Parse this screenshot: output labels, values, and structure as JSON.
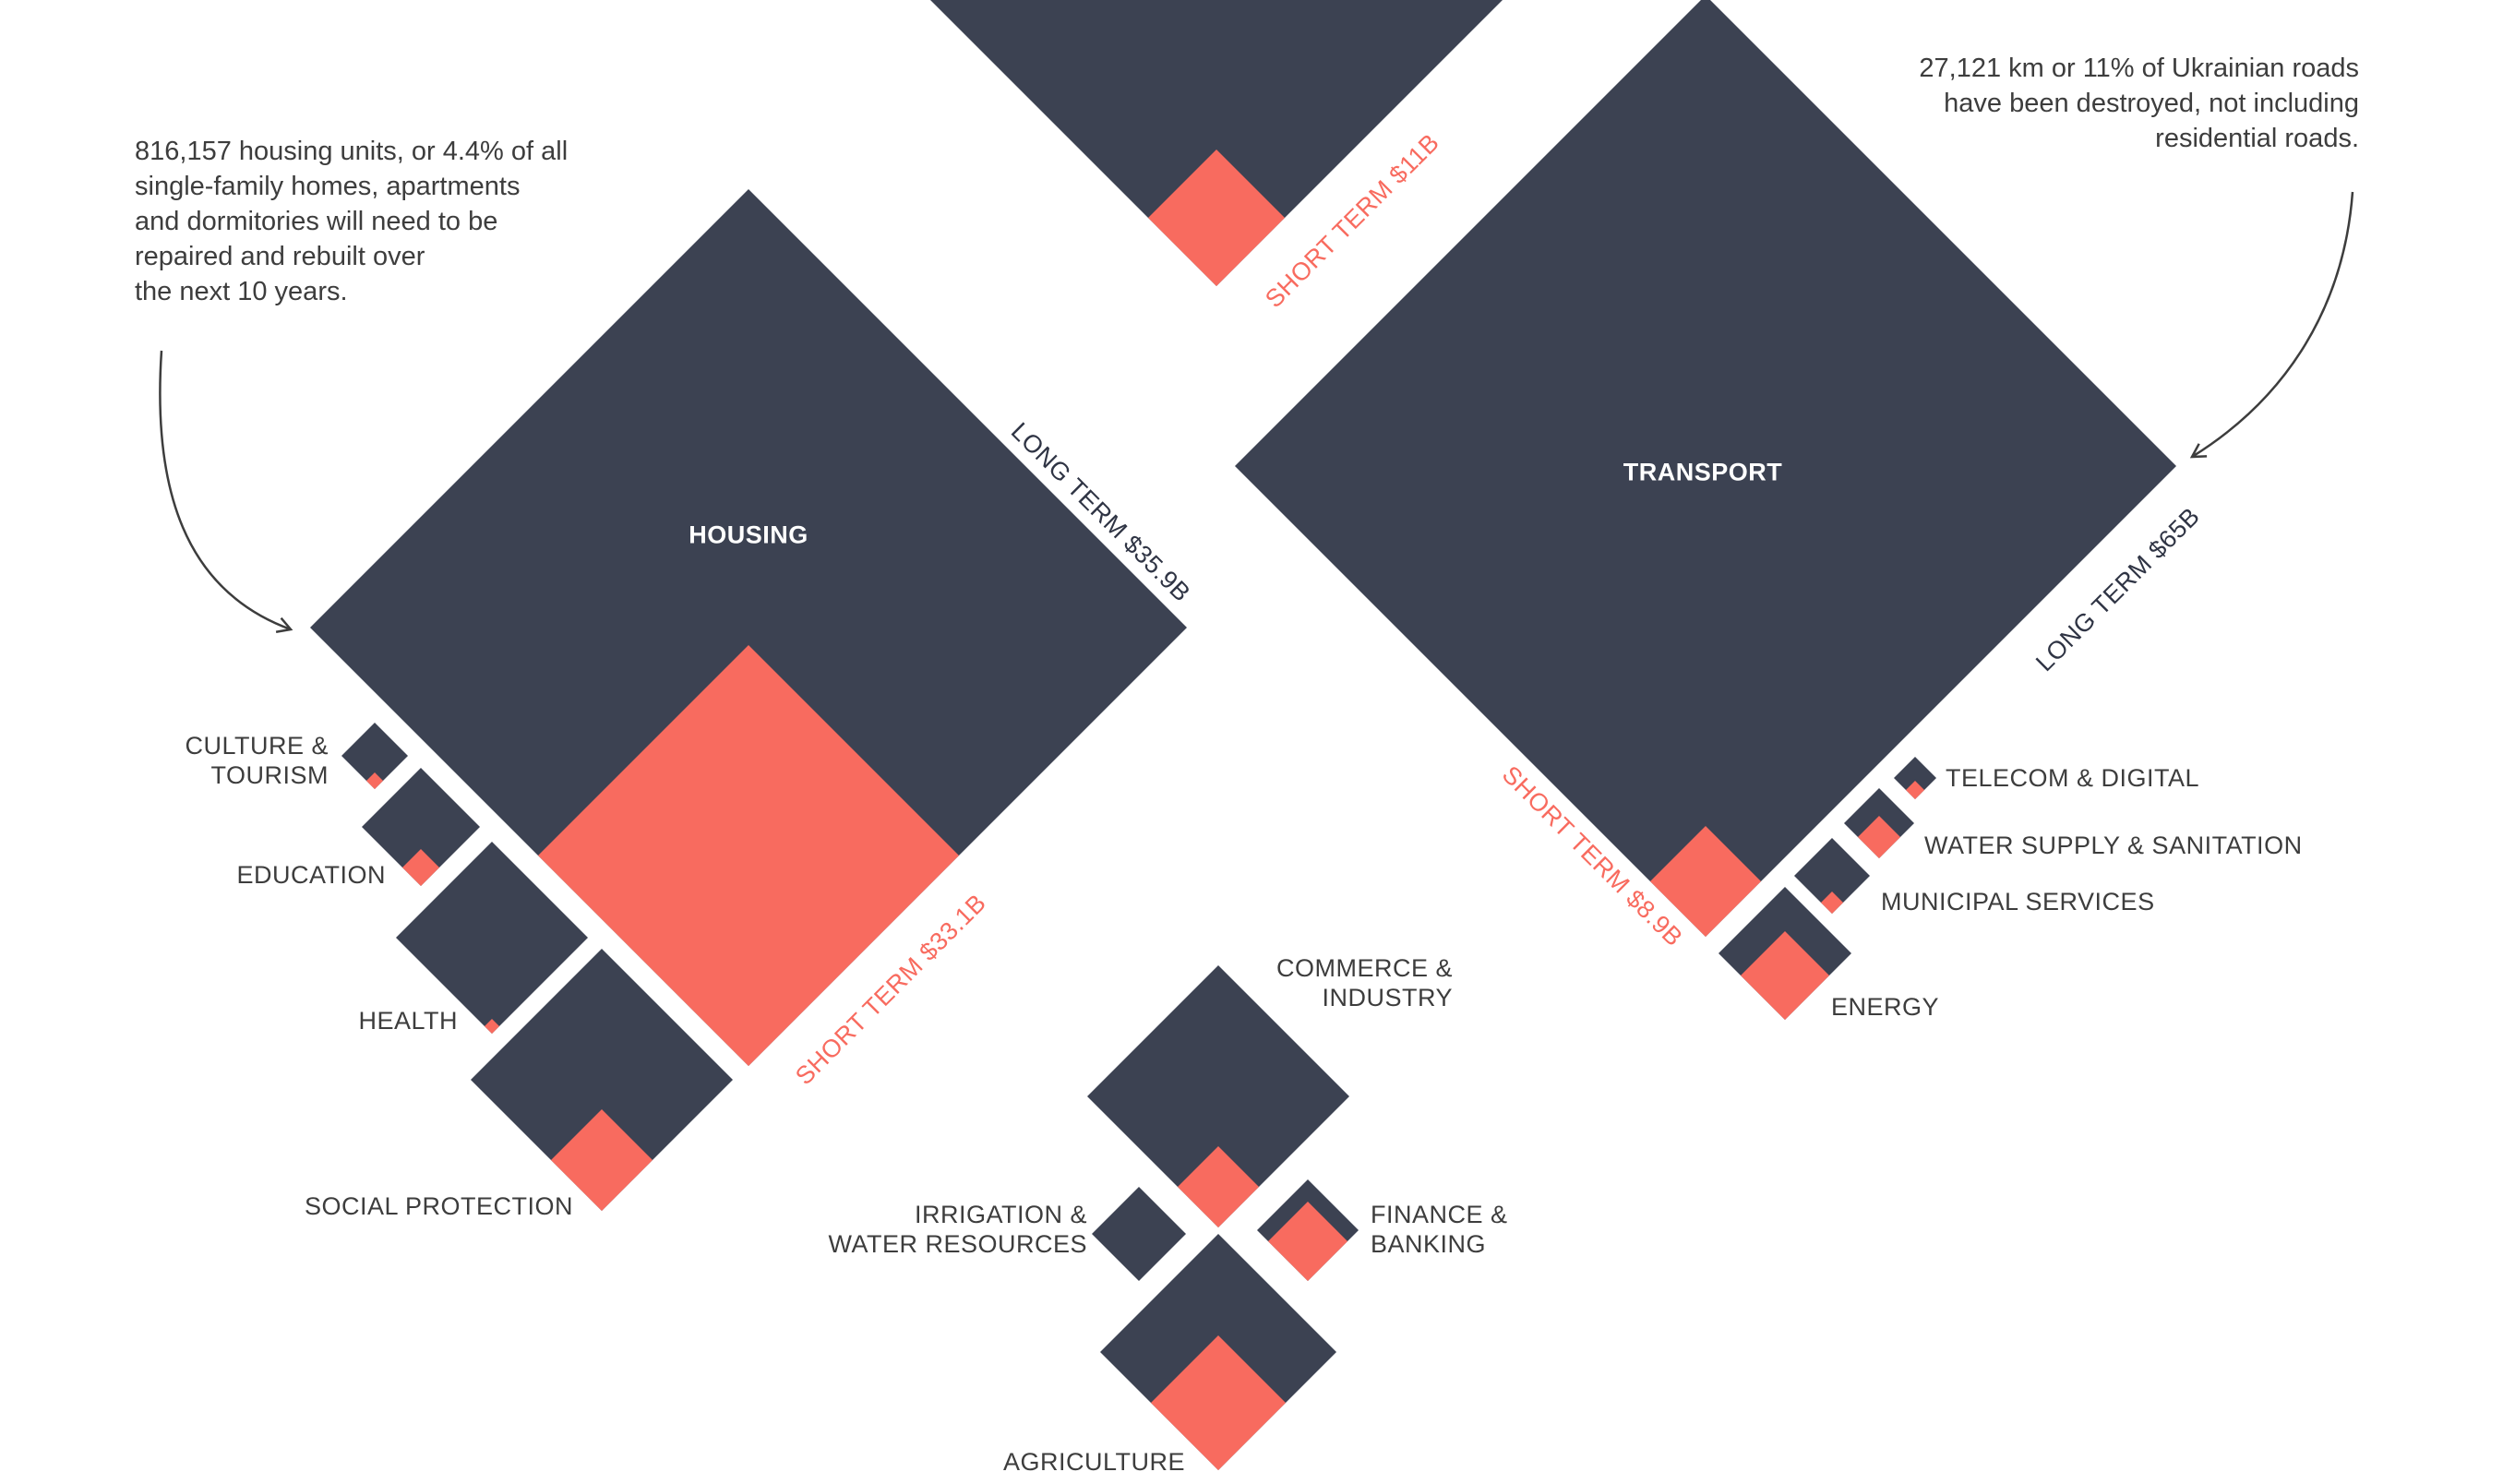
{
  "colors": {
    "long_term": "#3c4252",
    "short_term": "#f86b5f",
    "text": "#3d3d3d",
    "title_text": "#ffffff",
    "arrow": "#3d3d3d"
  },
  "notes": {
    "housing": "816,157 housing units, or 4.4% of all\nsingle-family homes, apartments\nand dormitories will need to be\nrepaired and rebuilt over\nthe next 10 years.",
    "transport": "27,121 km or 11% of Ukrainian roads\nhave been destroyed, not including\nresidential roads."
  },
  "titles": {
    "housing": "HOUSING",
    "transport": "TRANSPORT"
  },
  "rotated_labels": {
    "top_short": "SHORT TERM $11B",
    "housing_long": "LONG TERM $35.9B",
    "housing_short": "SHORT TERM $33.1B",
    "transport_long": "LONG TERM $65B",
    "transport_short": "SHORT TERM $8.9B"
  },
  "sector_labels": {
    "culture": "CULTURE &\nTOURISM",
    "education": "EDUCATION",
    "health": "HEALTH",
    "social": "SOCIAL PROTECTION",
    "telecom": "TELECOM & DIGITAL",
    "water": "WATER SUPPLY & SANITATION",
    "municipal": "MUNICIPAL SERVICES",
    "energy": "ENERGY",
    "commerce": "COMMERCE &\nINDUSTRY",
    "irrigation": "IRRIGATION &\nWATER RESOURCES",
    "finance": "FINANCE &\nBANKING",
    "agriculture": "AGRICULTURE"
  },
  "chart_data": {
    "type": "nested-diamonds",
    "series": [
      {
        "name": "LONG TERM"
      },
      {
        "name": "SHORT TERM"
      }
    ],
    "sectors": [
      {
        "name": "",
        "long_term_billion_usd": null,
        "short_term_billion_usd": 11
      },
      {
        "name": "HOUSING",
        "long_term_billion_usd": 35.9,
        "short_term_billion_usd": 33.1
      },
      {
        "name": "TRANSPORT",
        "long_term_billion_usd": 65,
        "short_term_billion_usd": 8.9
      },
      {
        "name": "CULTURE & TOURISM",
        "long_term_billion_usd": null,
        "short_term_billion_usd": null
      },
      {
        "name": "EDUCATION",
        "long_term_billion_usd": null,
        "short_term_billion_usd": null
      },
      {
        "name": "HEALTH",
        "long_term_billion_usd": null,
        "short_term_billion_usd": null
      },
      {
        "name": "SOCIAL PROTECTION",
        "long_term_billion_usd": null,
        "short_term_billion_usd": null
      },
      {
        "name": "TELECOM & DIGITAL",
        "long_term_billion_usd": null,
        "short_term_billion_usd": null
      },
      {
        "name": "WATER SUPPLY & SANITATION",
        "long_term_billion_usd": null,
        "short_term_billion_usd": null
      },
      {
        "name": "MUNICIPAL SERVICES",
        "long_term_billion_usd": null,
        "short_term_billion_usd": null
      },
      {
        "name": "ENERGY",
        "long_term_billion_usd": null,
        "short_term_billion_usd": null
      },
      {
        "name": "COMMERCE & INDUSTRY",
        "long_term_billion_usd": null,
        "short_term_billion_usd": null
      },
      {
        "name": "IRRIGATION & WATER RESOURCES",
        "long_term_billion_usd": null,
        "short_term_billion_usd": null
      },
      {
        "name": "FINANCE & BANKING",
        "long_term_billion_usd": null,
        "short_term_billion_usd": null
      },
      {
        "name": "AGRICULTURE",
        "long_term_billion_usd": null,
        "short_term_billion_usd": null
      }
    ]
  }
}
